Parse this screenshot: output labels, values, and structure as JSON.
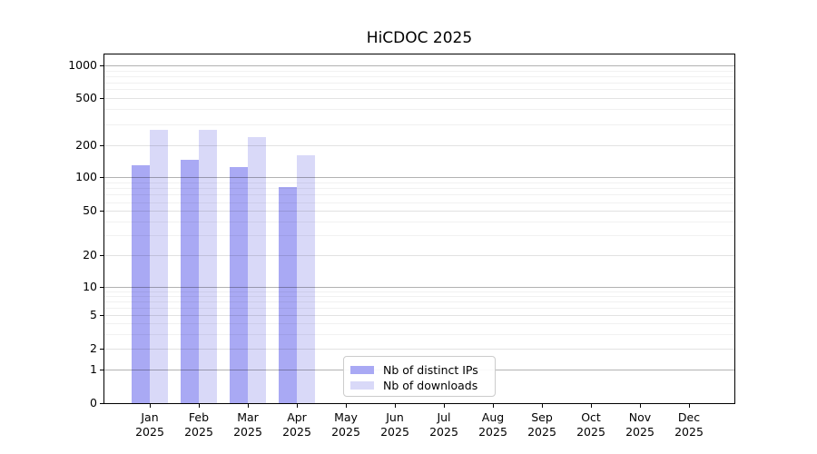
{
  "chart_data": {
    "type": "bar",
    "title": "HiCDOC 2025",
    "categories": [
      "Jan",
      "Feb",
      "Mar",
      "Apr",
      "May",
      "Jun",
      "Jul",
      "Aug",
      "Sep",
      "Oct",
      "Nov",
      "Dec"
    ],
    "category_year": "2025",
    "series": [
      {
        "name": "Nb of distinct IPs",
        "color": "#a9a9f4",
        "values": [
          130,
          145,
          125,
          82,
          null,
          null,
          null,
          null,
          null,
          null,
          null,
          null
        ]
      },
      {
        "name": "Nb of downloads",
        "color": "#d9d9f8",
        "values": [
          270,
          270,
          235,
          160,
          null,
          null,
          null,
          null,
          null,
          null,
          null,
          null
        ]
      }
    ],
    "xlabel": "",
    "ylabel": "",
    "y_ticks": [
      0,
      1,
      2,
      5,
      10,
      20,
      50,
      100,
      200,
      500,
      1000
    ],
    "y_minor_ticks": [
      3,
      4,
      6,
      7,
      8,
      9,
      30,
      40,
      60,
      70,
      80,
      90,
      300,
      400,
      600,
      700,
      800,
      900
    ],
    "y_major_emphasis": [
      1,
      10,
      100,
      1000
    ],
    "yscale": "symlog",
    "ylim": [
      0,
      1300
    ],
    "grid": "on",
    "legend_position": "bottom-center"
  }
}
